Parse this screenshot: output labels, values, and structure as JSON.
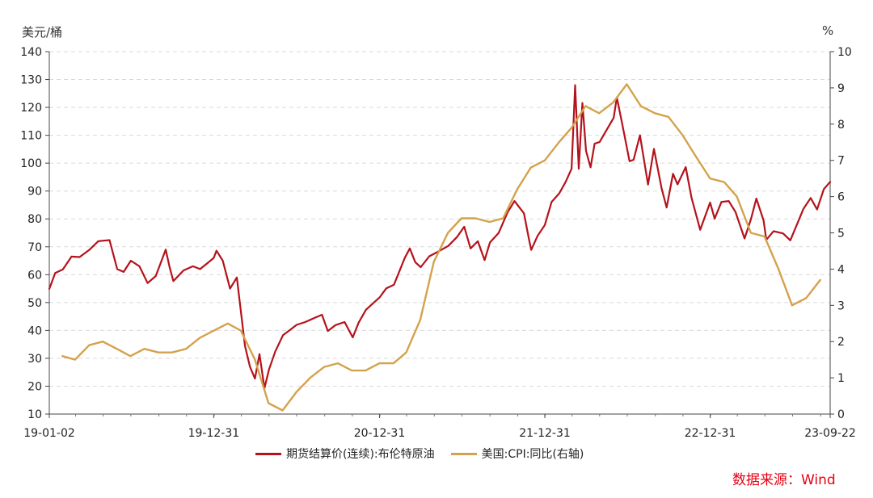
{
  "chart_data": {
    "type": "line",
    "left_unit": "美元/桶",
    "right_unit": "%",
    "ylim_left": [
      10,
      140
    ],
    "ylim_right": [
      0,
      10
    ],
    "yticks_left": [
      "10",
      "20",
      "30",
      "40",
      "50",
      "60",
      "70",
      "80",
      "90",
      "100",
      "110",
      "120",
      "130",
      "140"
    ],
    "yticks_right": [
      "0",
      "1",
      "2",
      "3",
      "4",
      "5",
      "6",
      "7",
      "8",
      "9",
      "10"
    ],
    "xlim": [
      "2019-01-02",
      "2023-09-22"
    ],
    "xticks": [
      {
        "label": "19-01-02",
        "date": "2019-01-02"
      },
      {
        "label": "19-12-31",
        "date": "2019-12-31"
      },
      {
        "label": "20-12-31",
        "date": "2020-12-31"
      },
      {
        "label": "21-12-31",
        "date": "2021-12-31"
      },
      {
        "label": "22-12-31",
        "date": "2022-12-31"
      },
      {
        "label": "23-09-22",
        "date": "2023-09-22"
      }
    ],
    "grid": true,
    "legend_position": "bottom",
    "series": [
      {
        "name": "期货结算价(连续):布伦特原油",
        "axis": "left",
        "color": "#b5121b",
        "points": [
          [
            "2019-01-02",
            54.9
          ],
          [
            "2019-01-15",
            60.6
          ],
          [
            "2019-02-01",
            61.9
          ],
          [
            "2019-02-20",
            66.5
          ],
          [
            "2019-03-10",
            66.3
          ],
          [
            "2019-04-01",
            69.0
          ],
          [
            "2019-04-20",
            72.0
          ],
          [
            "2019-05-01",
            72.2
          ],
          [
            "2019-05-15",
            72.4
          ],
          [
            "2019-06-01",
            62.0
          ],
          [
            "2019-06-15",
            61.0
          ],
          [
            "2019-07-01",
            65.0
          ],
          [
            "2019-07-20",
            63.0
          ],
          [
            "2019-08-07",
            57.0
          ],
          [
            "2019-08-25",
            59.5
          ],
          [
            "2019-09-16",
            69.0
          ],
          [
            "2019-09-25",
            62.5
          ],
          [
            "2019-10-03",
            57.7
          ],
          [
            "2019-10-25",
            61.5
          ],
          [
            "2019-11-15",
            63.0
          ],
          [
            "2019-12-01",
            62.0
          ],
          [
            "2019-12-31",
            66.0
          ],
          [
            "2020-01-06",
            68.6
          ],
          [
            "2020-01-20",
            65.0
          ],
          [
            "2020-02-05",
            55.0
          ],
          [
            "2020-02-20",
            59.0
          ],
          [
            "2020-03-09",
            34.4
          ],
          [
            "2020-03-20",
            27.0
          ],
          [
            "2020-03-31",
            22.7
          ],
          [
            "2020-04-10",
            31.5
          ],
          [
            "2020-04-21",
            19.3
          ],
          [
            "2020-05-01",
            26.0
          ],
          [
            "2020-05-15",
            32.5
          ],
          [
            "2020-06-01",
            38.3
          ],
          [
            "2020-06-15",
            40.0
          ],
          [
            "2020-07-01",
            42.0
          ],
          [
            "2020-07-20",
            43.0
          ],
          [
            "2020-08-10",
            44.5
          ],
          [
            "2020-08-26",
            45.6
          ],
          [
            "2020-09-08",
            39.8
          ],
          [
            "2020-09-25",
            41.9
          ],
          [
            "2020-10-15",
            43.0
          ],
          [
            "2020-11-02",
            37.5
          ],
          [
            "2020-11-15",
            42.8
          ],
          [
            "2020-12-01",
            47.4
          ],
          [
            "2020-12-31",
            51.8
          ],
          [
            "2021-01-15",
            55.1
          ],
          [
            "2021-02-01",
            56.4
          ],
          [
            "2021-02-25",
            66.1
          ],
          [
            "2021-03-08",
            69.4
          ],
          [
            "2021-03-20",
            64.5
          ],
          [
            "2021-04-01",
            62.7
          ],
          [
            "2021-04-20",
            66.6
          ],
          [
            "2021-05-10",
            68.3
          ],
          [
            "2021-06-01",
            70.3
          ],
          [
            "2021-06-20",
            73.5
          ],
          [
            "2021-07-06",
            77.2
          ],
          [
            "2021-07-20",
            69.4
          ],
          [
            "2021-08-05",
            72.0
          ],
          [
            "2021-08-20",
            65.2
          ],
          [
            "2021-09-01",
            71.6
          ],
          [
            "2021-09-20",
            74.9
          ],
          [
            "2021-10-10",
            82.4
          ],
          [
            "2021-10-25",
            86.4
          ],
          [
            "2021-11-15",
            82.0
          ],
          [
            "2021-11-26",
            72.7
          ],
          [
            "2021-12-01",
            68.9
          ],
          [
            "2021-12-15",
            73.9
          ],
          [
            "2021-12-31",
            77.8
          ],
          [
            "2022-01-15",
            86.1
          ],
          [
            "2022-02-01",
            89.2
          ],
          [
            "2022-02-15",
            93.3
          ],
          [
            "2022-02-28",
            98.0
          ],
          [
            "2022-03-08",
            127.98
          ],
          [
            "2022-03-16",
            98.0
          ],
          [
            "2022-03-24",
            121.6
          ],
          [
            "2022-04-01",
            104.4
          ],
          [
            "2022-04-11",
            98.5
          ],
          [
            "2022-04-20",
            107.0
          ],
          [
            "2022-05-01",
            107.6
          ],
          [
            "2022-05-15",
            111.5
          ],
          [
            "2022-06-01",
            116.3
          ],
          [
            "2022-06-08",
            123.6
          ],
          [
            "2022-06-20",
            114.0
          ],
          [
            "2022-07-06",
            100.7
          ],
          [
            "2022-07-15",
            101.2
          ],
          [
            "2022-07-29",
            110.0
          ],
          [
            "2022-08-16",
            92.3
          ],
          [
            "2022-08-29",
            105.1
          ],
          [
            "2022-09-15",
            90.8
          ],
          [
            "2022-09-26",
            84.1
          ],
          [
            "2022-10-10",
            96.2
          ],
          [
            "2022-10-20",
            92.4
          ],
          [
            "2022-11-07",
            98.6
          ],
          [
            "2022-11-20",
            87.6
          ],
          [
            "2022-12-09",
            76.1
          ],
          [
            "2022-12-31",
            85.9
          ],
          [
            "2023-01-10",
            80.1
          ],
          [
            "2023-01-25",
            86.1
          ],
          [
            "2023-02-10",
            86.4
          ],
          [
            "2023-02-25",
            82.5
          ],
          [
            "2023-03-17",
            72.97
          ],
          [
            "2023-03-31",
            79.8
          ],
          [
            "2023-04-12",
            87.3
          ],
          [
            "2023-04-28",
            79.5
          ],
          [
            "2023-05-04",
            72.5
          ],
          [
            "2023-05-20",
            75.6
          ],
          [
            "2023-06-10",
            74.8
          ],
          [
            "2023-06-26",
            72.3
          ],
          [
            "2023-07-10",
            77.7
          ],
          [
            "2023-07-25",
            83.6
          ],
          [
            "2023-08-10",
            87.5
          ],
          [
            "2023-08-24",
            83.4
          ],
          [
            "2023-09-08",
            90.7
          ],
          [
            "2023-09-22",
            93.3
          ]
        ]
      },
      {
        "name": "美国:CPI:同比(右轴)",
        "axis": "right",
        "color": "#d4a24c",
        "points": [
          [
            "2019-01-31",
            1.6
          ],
          [
            "2019-02-28",
            1.5
          ],
          [
            "2019-03-31",
            1.9
          ],
          [
            "2019-04-30",
            2.0
          ],
          [
            "2019-05-31",
            1.8
          ],
          [
            "2019-06-30",
            1.6
          ],
          [
            "2019-07-31",
            1.8
          ],
          [
            "2019-08-31",
            1.7
          ],
          [
            "2019-09-30",
            1.7
          ],
          [
            "2019-10-31",
            1.8
          ],
          [
            "2019-11-30",
            2.1
          ],
          [
            "2019-12-31",
            2.3
          ],
          [
            "2020-01-31",
            2.5
          ],
          [
            "2020-02-29",
            2.3
          ],
          [
            "2020-03-31",
            1.5
          ],
          [
            "2020-04-30",
            0.3
          ],
          [
            "2020-05-31",
            0.1
          ],
          [
            "2020-06-30",
            0.6
          ],
          [
            "2020-07-31",
            1.0
          ],
          [
            "2020-08-31",
            1.3
          ],
          [
            "2020-09-30",
            1.4
          ],
          [
            "2020-10-31",
            1.2
          ],
          [
            "2020-11-30",
            1.2
          ],
          [
            "2020-12-31",
            1.4
          ],
          [
            "2021-01-31",
            1.4
          ],
          [
            "2021-02-28",
            1.7
          ],
          [
            "2021-03-31",
            2.6
          ],
          [
            "2021-04-30",
            4.2
          ],
          [
            "2021-05-31",
            5.0
          ],
          [
            "2021-06-30",
            5.4
          ],
          [
            "2021-07-31",
            5.4
          ],
          [
            "2021-08-31",
            5.3
          ],
          [
            "2021-09-30",
            5.4
          ],
          [
            "2021-10-31",
            6.2
          ],
          [
            "2021-11-30",
            6.8
          ],
          [
            "2021-12-31",
            7.0
          ],
          [
            "2022-01-31",
            7.5
          ],
          [
            "2022-02-28",
            7.9
          ],
          [
            "2022-03-31",
            8.5
          ],
          [
            "2022-04-30",
            8.3
          ],
          [
            "2022-05-31",
            8.6
          ],
          [
            "2022-06-30",
            9.1
          ],
          [
            "2022-07-31",
            8.5
          ],
          [
            "2022-08-31",
            8.3
          ],
          [
            "2022-09-30",
            8.2
          ],
          [
            "2022-10-31",
            7.7
          ],
          [
            "2022-11-30",
            7.1
          ],
          [
            "2022-12-31",
            6.5
          ],
          [
            "2023-01-31",
            6.4
          ],
          [
            "2023-02-28",
            6.0
          ],
          [
            "2023-03-31",
            5.0
          ],
          [
            "2023-04-30",
            4.9
          ],
          [
            "2023-05-31",
            4.0
          ],
          [
            "2023-06-30",
            3.0
          ],
          [
            "2023-07-31",
            3.2
          ],
          [
            "2023-08-31",
            3.7
          ]
        ]
      }
    ]
  },
  "source_label": "数据来源：Wind"
}
